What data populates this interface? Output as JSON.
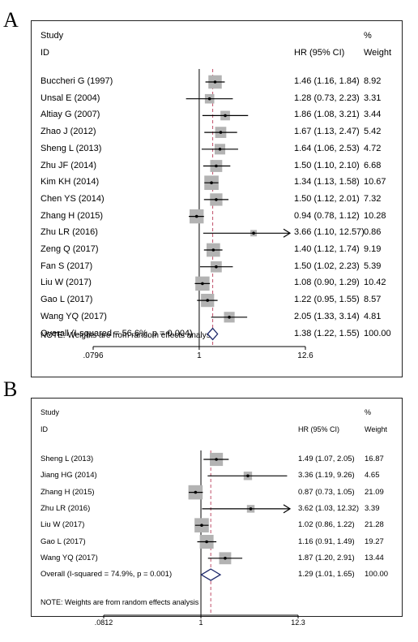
{
  "chart_data": [
    {
      "type": "forest",
      "panel_label": "A",
      "study_header": "Study",
      "id_header": "ID",
      "effect_header": "HR (95% CI)",
      "pct_header": "%",
      "weight_header": "Weight",
      "note": "NOTE: Weights are from random effects analysis",
      "x_scale": "log",
      "xlim": [
        0.0796,
        12.6
      ],
      "xticks": [
        "0.0796",
        "1",
        "12.6"
      ],
      "xtick_labels": [
        ".0796",
        "1",
        "12.6"
      ],
      "null_line": 1,
      "overall_line": 1.38,
      "studies": [
        {
          "label": "Buccheri G (1997)",
          "hr": 1.46,
          "lo": 1.16,
          "hi": 1.84,
          "ci_text": "1.46 (1.16, 1.84)",
          "weight": "8.92"
        },
        {
          "label": "Unsal E (2004)",
          "hr": 1.28,
          "lo": 0.73,
          "hi": 2.23,
          "ci_text": "1.28 (0.73, 2.23)",
          "weight": "3.31"
        },
        {
          "label": "Altiay G (2007)",
          "hr": 1.86,
          "lo": 1.08,
          "hi": 3.21,
          "ci_text": "1.86 (1.08, 3.21)",
          "weight": "3.44"
        },
        {
          "label": "Zhao J (2012)",
          "hr": 1.67,
          "lo": 1.13,
          "hi": 2.47,
          "ci_text": "1.67 (1.13, 2.47)",
          "weight": "5.42"
        },
        {
          "label": "Sheng L (2013)",
          "hr": 1.64,
          "lo": 1.06,
          "hi": 2.53,
          "ci_text": "1.64 (1.06, 2.53)",
          "weight": "4.72"
        },
        {
          "label": "Zhu JF (2014)",
          "hr": 1.5,
          "lo": 1.1,
          "hi": 2.1,
          "ci_text": "1.50 (1.10, 2.10)",
          "weight": "6.68"
        },
        {
          "label": "Kim KH (2014)",
          "hr": 1.34,
          "lo": 1.13,
          "hi": 1.58,
          "ci_text": "1.34 (1.13, 1.58)",
          "weight": "10.67"
        },
        {
          "label": "Chen YS (2014)",
          "hr": 1.5,
          "lo": 1.12,
          "hi": 2.01,
          "ci_text": "1.50 (1.12, 2.01)",
          "weight": "7.32"
        },
        {
          "label": "Zhang H (2015)",
          "hr": 0.94,
          "lo": 0.78,
          "hi": 1.12,
          "ci_text": "0.94 (0.78, 1.12)",
          "weight": "10.28"
        },
        {
          "label": "Zhu LR (2016)",
          "hr": 3.66,
          "lo": 1.1,
          "hi": 12.57,
          "ci_text": "3.66 (1.10, 12.57)",
          "weight": "0.86"
        },
        {
          "label": "Zeng Q (2017)",
          "hr": 1.4,
          "lo": 1.12,
          "hi": 1.74,
          "ci_text": "1.40 (1.12, 1.74)",
          "weight": "9.19"
        },
        {
          "label": "Fan S (2017)",
          "hr": 1.5,
          "lo": 1.02,
          "hi": 2.23,
          "ci_text": "1.50 (1.02, 2.23)",
          "weight": "5.39"
        },
        {
          "label": "Liu W (2017)",
          "hr": 1.08,
          "lo": 0.9,
          "hi": 1.29,
          "ci_text": "1.08 (0.90, 1.29)",
          "weight": "10.42"
        },
        {
          "label": "Gao L (2017)",
          "hr": 1.22,
          "lo": 0.95,
          "hi": 1.55,
          "ci_text": "1.22 (0.95, 1.55)",
          "weight": "8.57"
        },
        {
          "label": "Wang YQ (2017)",
          "hr": 2.05,
          "lo": 1.33,
          "hi": 3.14,
          "ci_text": "2.05 (1.33, 3.14)",
          "weight": "4.81"
        }
      ],
      "overall": {
        "label": "Overall  (I-squared = 56.6%, p = 0.004)",
        "hr": 1.38,
        "lo": 1.22,
        "hi": 1.55,
        "ci_text": "1.38 (1.22, 1.55)",
        "weight": "100.00"
      }
    },
    {
      "type": "forest",
      "panel_label": "B",
      "study_header": "Study",
      "id_header": "ID",
      "effect_header": "HR (95% CI)",
      "pct_header": "%",
      "weight_header": "Weight",
      "note": "NOTE: Weights are from random effects analysis",
      "x_scale": "log",
      "xlim": [
        0.0812,
        12.3
      ],
      "xticks": [
        "0.0812",
        "1",
        "12.3"
      ],
      "xtick_labels": [
        ".0812",
        "1",
        "12.3"
      ],
      "null_line": 1,
      "overall_line": 1.29,
      "studies": [
        {
          "label": "Sheng L (2013)",
          "hr": 1.49,
          "lo": 1.07,
          "hi": 2.05,
          "ci_text": "1.49 (1.07, 2.05)",
          "weight": "16.87"
        },
        {
          "label": "Jiang HG (2014)",
          "hr": 3.36,
          "lo": 1.19,
          "hi": 9.26,
          "ci_text": "3.36 (1.19, 9.26)",
          "weight": "4.65"
        },
        {
          "label": "Zhang H (2015)",
          "hr": 0.87,
          "lo": 0.73,
          "hi": 1.05,
          "ci_text": "0.87 (0.73, 1.05)",
          "weight": "21.09"
        },
        {
          "label": "Zhu LR (2016)",
          "hr": 3.62,
          "lo": 1.03,
          "hi": 12.32,
          "ci_text": "3.62 (1.03, 12.32)",
          "weight": "3.39"
        },
        {
          "label": "Liu W (2017)",
          "hr": 1.02,
          "lo": 0.86,
          "hi": 1.22,
          "ci_text": "1.02 (0.86, 1.22)",
          "weight": "21.28"
        },
        {
          "label": "Gao L (2017)",
          "hr": 1.16,
          "lo": 0.91,
          "hi": 1.49,
          "ci_text": "1.16 (0.91, 1.49)",
          "weight": "19.27"
        },
        {
          "label": "Wang YQ (2017)",
          "hr": 1.87,
          "lo": 1.2,
          "hi": 2.91,
          "ci_text": "1.87 (1.20, 2.91)",
          "weight": "13.44"
        }
      ],
      "overall": {
        "label": "Overall  (I-squared = 74.9%, p = 0.001)",
        "hr": 1.29,
        "lo": 1.01,
        "hi": 1.65,
        "ci_text": "1.29 (1.01, 1.65)",
        "weight": "100.00"
      }
    }
  ],
  "colors": {
    "ink": "#000000",
    "box": "#b3b3b3",
    "diamond": "#1f2a6b",
    "reference_line": "#c0506a"
  }
}
